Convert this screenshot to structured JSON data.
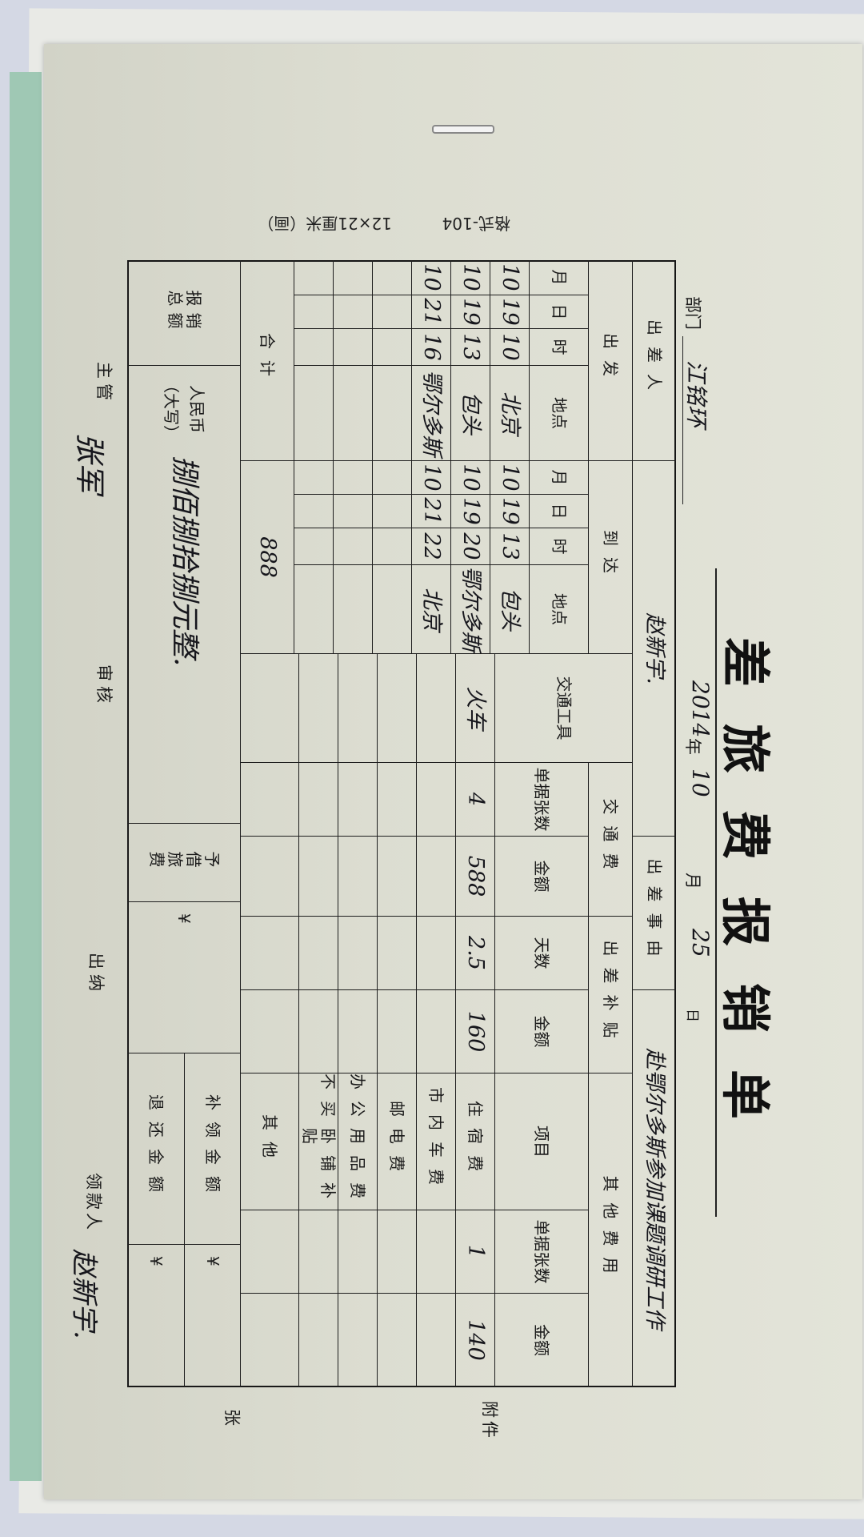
{
  "form": {
    "title": "差旅费报销单",
    "format_code": "格式-104",
    "size_note": "12×21厘米（画）",
    "department_label": "部门",
    "department_value": "江铭环",
    "date": {
      "year": "2014",
      "year_unit": "年",
      "month": "10",
      "month_unit": "月",
      "day": "25",
      "day_unit": "日"
    },
    "traveler_label": "出差人",
    "traveler_value": "赵新宇.",
    "purpose_label": "出差事由",
    "purpose_value": "赴鄂尔多斯参加课题调研工作",
    "headers": {
      "departure": "出发",
      "arrival": "到达",
      "month": "月",
      "day": "日",
      "hour": "时",
      "place": "地点",
      "transport_tool": "交通工具",
      "transport_fee": "交通费",
      "allowance": "出差补贴",
      "other_fees": "其他费用",
      "receipts": "单据张数",
      "amount": "金额",
      "days": "天数",
      "item": "项目"
    },
    "trips": [
      {
        "dep_month": "10",
        "dep_day": "19",
        "dep_hour": "10",
        "dep_place": "北京",
        "arr_month": "10",
        "arr_day": "19",
        "arr_hour": "13",
        "arr_place": "包头"
      },
      {
        "dep_month": "10",
        "dep_day": "19",
        "dep_hour": "13",
        "dep_place": "包头",
        "arr_month": "10",
        "arr_day": "19",
        "arr_hour": "20",
        "arr_place": "鄂尔多斯"
      },
      {
        "dep_month": "10",
        "dep_day": "21",
        "dep_hour": "16",
        "dep_place": "鄂尔多斯",
        "arr_month": "10",
        "arr_day": "21",
        "arr_hour": "22",
        "arr_place": "北京"
      }
    ],
    "transport": {
      "tool": "火车",
      "receipts": "4",
      "amount": "588",
      "allowance_days": "2.5",
      "allowance_amount": "160"
    },
    "other_expenses": [
      {
        "item": "住宿费",
        "receipts": "1",
        "amount": "140"
      },
      {
        "item": "市内车费",
        "receipts": "",
        "amount": ""
      },
      {
        "item": "邮电费",
        "receipts": "",
        "amount": ""
      },
      {
        "item": "办公用品费",
        "receipts": "",
        "amount": ""
      },
      {
        "item": "不买卧铺补贴",
        "receipts": "",
        "amount": ""
      },
      {
        "item": "其他",
        "receipts": "",
        "amount": ""
      }
    ],
    "total_label": "合计",
    "total_value": "888",
    "reimburse_label": "报销总额",
    "rmb_label_1": "人民币",
    "rmb_label_2": "（大写）",
    "rmb_value": "捌佰捌拾捌元整.",
    "advance_label": "予借旅费",
    "advance_value": "¥",
    "supplement_label": "补领金额",
    "supplement_value": "¥",
    "refund_label": "退还金额",
    "refund_value": "¥",
    "attachments_label": "附件",
    "attachments_unit": "张",
    "footer": {
      "supervisor_label": "主管",
      "supervisor_signature": "张军",
      "auditor_label": "审核",
      "cashier_label": "出纳",
      "payee_label": "领款人",
      "payee_signature": "赵新宇."
    }
  }
}
